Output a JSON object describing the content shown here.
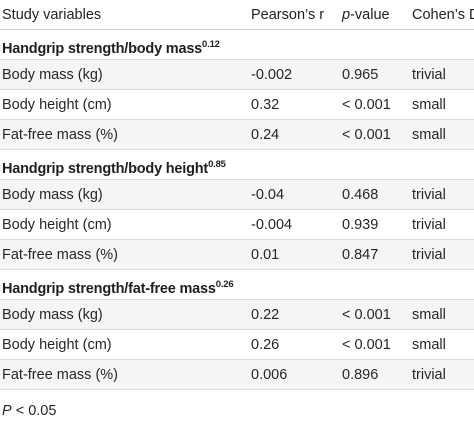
{
  "header": {
    "col1": "Study variables",
    "col2": "Pearson’s r",
    "col3_italic": "p",
    "col3_rest": "-value",
    "col4": "Cohen’s D"
  },
  "groups": [
    {
      "title": "Handgrip strength/body mass",
      "exponent": "0.12",
      "rows": [
        {
          "variable": "Body mass (kg)",
          "r": "-0.002",
          "p": "0.965",
          "d": "trivial"
        },
        {
          "variable": "Body height (cm)",
          "r": "0.32",
          "p": "< 0.001",
          "d": "small"
        },
        {
          "variable": "Fat-free mass (%)",
          "r": "0.24",
          "p": "< 0.001",
          "d": "small"
        }
      ]
    },
    {
      "title": "Handgrip strength/body height",
      "exponent": "0.85",
      "rows": [
        {
          "variable": "Body mass (kg)",
          "r": "-0.04",
          "p": "0.468",
          "d": "trivial"
        },
        {
          "variable": "Body height (cm)",
          "r": "-0.004",
          "p": "0.939",
          "d": "trivial"
        },
        {
          "variable": "Fat-free mass (%)",
          "r": "0.01",
          "p": "0.847",
          "d": "trivial"
        }
      ]
    },
    {
      "title": "Handgrip strength/fat-free mass",
      "exponent": "0.26",
      "rows": [
        {
          "variable": "Body mass (kg)",
          "r": "0.22",
          "p": "< 0.001",
          "d": "small"
        },
        {
          "variable": "Body height (cm)",
          "r": "0.26",
          "p": "< 0.001",
          "d": "small"
        },
        {
          "variable": "Fat-free mass (%)",
          "r": "0.006",
          "p": "0.896",
          "d": "trivial"
        }
      ]
    }
  ],
  "footnote": {
    "italic": "P",
    "rest": " < 0.05"
  }
}
